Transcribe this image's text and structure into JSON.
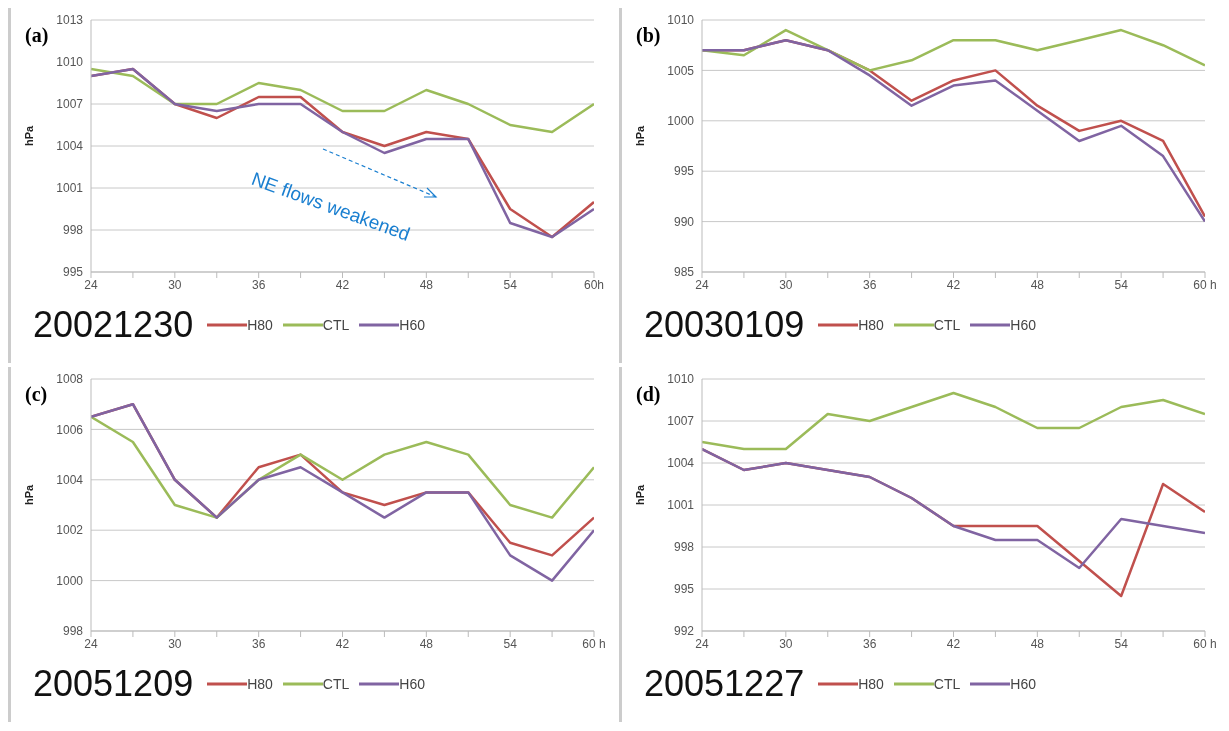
{
  "chart_data": [
    {
      "type": "line",
      "title": "20021230",
      "ylabel": "hPa",
      "annotations": [
        "(a)",
        "NE flows weakened"
      ],
      "x": [
        24,
        27,
        30,
        33,
        36,
        39,
        42,
        45,
        48,
        51,
        54,
        57,
        60
      ],
      "xlim": [
        24,
        60
      ],
      "xticks": [
        24,
        {
          "value": 27,
          "label": null
        },
        30,
        {
          "value": 33,
          "label": null
        },
        36,
        {
          "value": 39,
          "label": null
        },
        42,
        {
          "value": 45,
          "label": null
        },
        48,
        {
          "value": 51,
          "label": null
        },
        54,
        {
          "value": 57,
          "label": null
        },
        {
          "value": 60,
          "label": "60h"
        }
      ],
      "ylim": [
        995,
        1013
      ],
      "yticks": [
        995,
        998,
        1001,
        1004,
        1007,
        1010,
        1013
      ],
      "grid": "y",
      "legend": "bottom",
      "marker": "none",
      "series": [
        {
          "name": "H80",
          "color": "#c0504d",
          "values": [
            1009,
            1009.5,
            1007,
            1006,
            1007.5,
            1007.5,
            1005,
            1004,
            1005,
            1004.5,
            999.5,
            997.5,
            1000
          ]
        },
        {
          "name": "CTL",
          "color": "#9bbb59",
          "values": [
            1009.5,
            1009,
            1007,
            1007,
            1008.5,
            1008,
            1006.5,
            1006.5,
            1008,
            1007,
            1005.5,
            1005,
            1007
          ]
        },
        {
          "name": "H60",
          "color": "#8064a2",
          "values": [
            1009,
            1009.5,
            1007,
            1006.5,
            1007,
            1007,
            1005,
            1003.5,
            1004.5,
            1004.5,
            998.5,
            997.5,
            999.5
          ]
        }
      ]
    },
    {
      "type": "line",
      "title": "20030109",
      "ylabel": "hPa",
      "annotations": [
        "(b)"
      ],
      "x": [
        24,
        27,
        30,
        33,
        36,
        39,
        42,
        45,
        48,
        51,
        54,
        57,
        60
      ],
      "xlim": [
        24,
        60
      ],
      "xticks": [
        24,
        {
          "value": 27,
          "label": null
        },
        30,
        {
          "value": 33,
          "label": null
        },
        36,
        {
          "value": 39,
          "label": null
        },
        42,
        {
          "value": 45,
          "label": null
        },
        48,
        {
          "value": 51,
          "label": null
        },
        54,
        {
          "value": 57,
          "label": null
        },
        {
          "value": 60,
          "label": "60 h"
        }
      ],
      "ylim": [
        985,
        1010
      ],
      "yticks": [
        985,
        990,
        995,
        1000,
        1005,
        1010
      ],
      "grid": "y",
      "legend": "bottom",
      "marker": "none",
      "series": [
        {
          "name": "H80",
          "color": "#c0504d",
          "values": [
            1007,
            1007,
            1008,
            1007,
            1005,
            1002,
            1004,
            1005,
            1001.5,
            999,
            1000,
            998,
            990.5
          ]
        },
        {
          "name": "CTL",
          "color": "#9bbb59",
          "values": [
            1007,
            1006.5,
            1009,
            1007,
            1005,
            1006,
            1008,
            1008,
            1007,
            1008,
            1009,
            1007.5,
            1005.5
          ]
        },
        {
          "name": "H60",
          "color": "#8064a2",
          "values": [
            1007,
            1007,
            1008,
            1007,
            1004.5,
            1001.5,
            1003.5,
            1004,
            1001,
            998,
            999.5,
            996.5,
            990
          ]
        }
      ]
    },
    {
      "type": "line",
      "title": "20051209",
      "ylabel": "hPa",
      "annotations": [
        "(c)"
      ],
      "x": [
        24,
        27,
        30,
        33,
        36,
        39,
        42,
        45,
        48,
        51,
        54,
        57,
        60
      ],
      "xlim": [
        24,
        60
      ],
      "xticks": [
        24,
        {
          "value": 27,
          "label": null
        },
        30,
        {
          "value": 33,
          "label": null
        },
        36,
        {
          "value": 39,
          "label": null
        },
        42,
        {
          "value": 45,
          "label": null
        },
        48,
        {
          "value": 51,
          "label": null
        },
        54,
        {
          "value": 57,
          "label": null
        },
        {
          "value": 60,
          "label": "60 h"
        }
      ],
      "ylim": [
        998,
        1008
      ],
      "yticks": [
        998,
        1000,
        1002,
        1004,
        1006,
        1008
      ],
      "grid": "y",
      "legend": "bottom",
      "marker": "none",
      "series": [
        {
          "name": "H80",
          "color": "#c0504d",
          "values": [
            1006.5,
            1007,
            1004,
            1002.5,
            1004.5,
            1005,
            1003.5,
            1003,
            1003.5,
            1003.5,
            1001.5,
            1001,
            1002.5
          ]
        },
        {
          "name": "CTL",
          "color": "#9bbb59",
          "values": [
            1006.5,
            1005.5,
            1003,
            1002.5,
            1004,
            1005,
            1004,
            1005,
            1005.5,
            1005,
            1003,
            1002.5,
            1004.5
          ]
        },
        {
          "name": "H60",
          "color": "#8064a2",
          "values": [
            1006.5,
            1007,
            1004,
            1002.5,
            1004,
            1004.5,
            1003.5,
            1002.5,
            1003.5,
            1003.5,
            1001,
            1000,
            1002
          ]
        }
      ]
    },
    {
      "type": "line",
      "title": "20051227",
      "ylabel": "hPa",
      "annotations": [
        "(d)"
      ],
      "x": [
        24,
        27,
        30,
        33,
        36,
        39,
        42,
        45,
        48,
        51,
        54,
        57,
        60
      ],
      "xlim": [
        24,
        60
      ],
      "xticks": [
        24,
        {
          "value": 27,
          "label": null
        },
        30,
        {
          "value": 33,
          "label": null
        },
        36,
        {
          "value": 39,
          "label": null
        },
        42,
        {
          "value": 45,
          "label": null
        },
        48,
        {
          "value": 51,
          "label": null
        },
        54,
        {
          "value": 57,
          "label": null
        },
        {
          "value": 60,
          "label": "60 h"
        }
      ],
      "ylim": [
        992,
        1010
      ],
      "yticks": [
        992,
        995,
        998,
        1001,
        1004,
        1007,
        1010
      ],
      "grid": "y",
      "legend": "bottom",
      "marker": "none",
      "series": [
        {
          "name": "H80",
          "color": "#c0504d",
          "values": [
            1005,
            1003.5,
            1004,
            1003.5,
            1003,
            1001.5,
            999.5,
            999.5,
            999.5,
            997,
            994.5,
            1002.5,
            1000.5
          ]
        },
        {
          "name": "CTL",
          "color": "#9bbb59",
          "values": [
            1005.5,
            1005,
            1005,
            1007.5,
            1007,
            1008,
            1009,
            1008,
            1006.5,
            1006.5,
            1008,
            1008.5,
            1007.5
          ]
        },
        {
          "name": "H60",
          "color": "#8064a2",
          "values": [
            1005,
            1003.5,
            1004,
            1003.5,
            1003,
            1001.5,
            999.5,
            998.5,
            998.5,
            996.5,
            1000,
            999.5,
            999
          ]
        }
      ]
    }
  ]
}
